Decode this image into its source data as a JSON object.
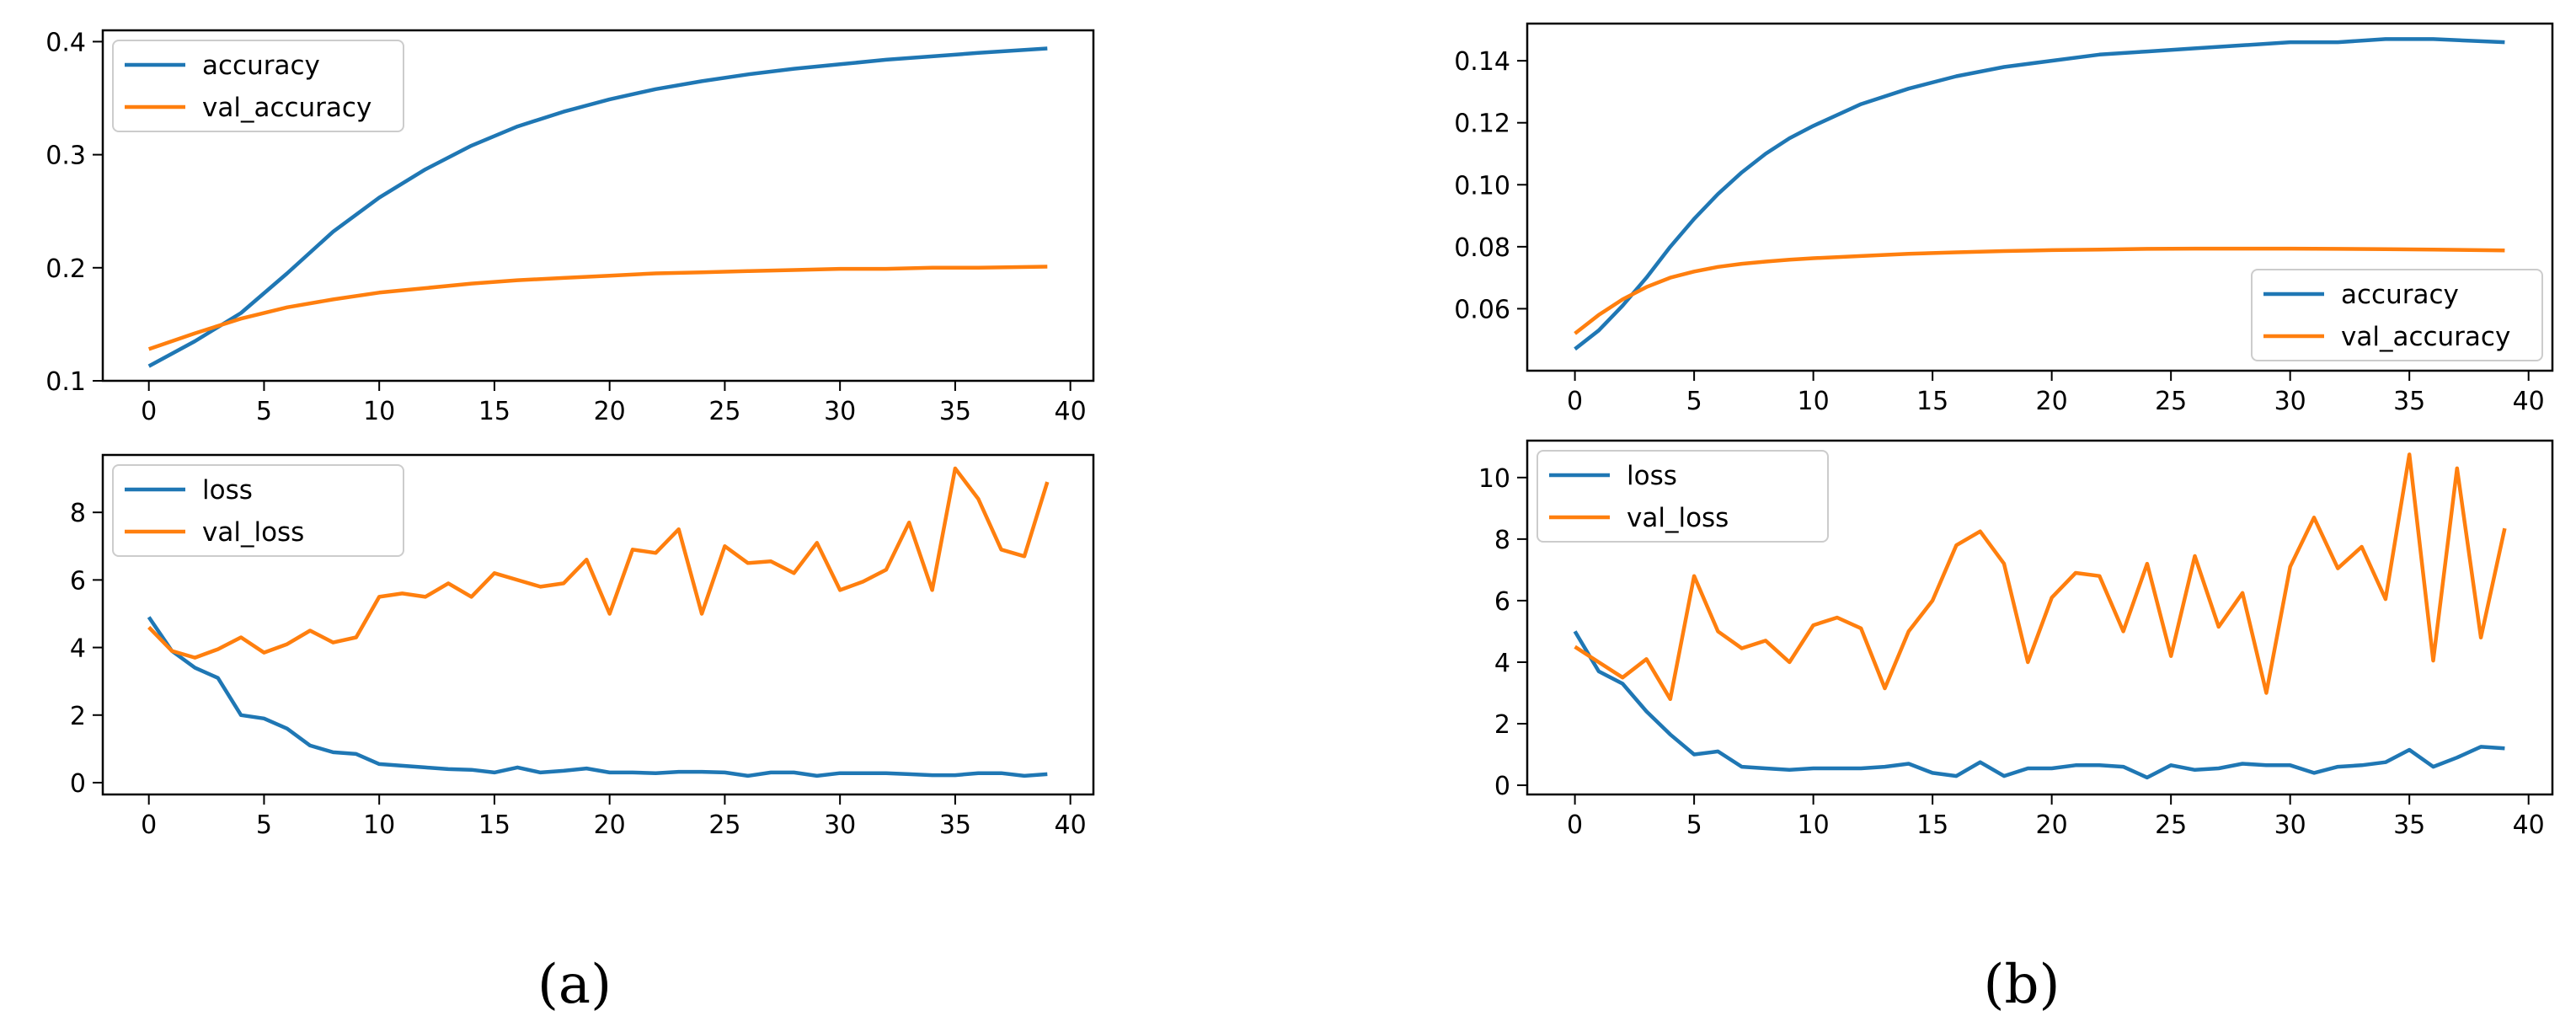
{
  "colors": {
    "blue": "#1f77b4",
    "orange": "#ff7f0e"
  },
  "captions": [
    "(a)",
    "(b)"
  ],
  "chart_data": [
    {
      "id": "a-accuracy",
      "type": "line",
      "x_ticks": [
        0,
        5,
        10,
        15,
        20,
        25,
        30,
        35,
        40
      ],
      "xlim": [
        -2,
        41
      ],
      "y_ticks": [
        0.1,
        0.2,
        0.3,
        0.4
      ],
      "y_tick_labels": [
        "0.1",
        "0.2",
        "0.3",
        "0.4"
      ],
      "ylim": [
        0.1,
        0.41
      ],
      "legend": "top-left",
      "series": [
        {
          "name": "accuracy",
          "color": "#1f77b4",
          "x": [
            0,
            2,
            4,
            6,
            8,
            10,
            12,
            14,
            16,
            18,
            20,
            22,
            24,
            26,
            28,
            30,
            32,
            34,
            36,
            39
          ],
          "values": [
            0.113,
            0.135,
            0.16,
            0.195,
            0.232,
            0.262,
            0.287,
            0.308,
            0.325,
            0.338,
            0.349,
            0.358,
            0.365,
            0.371,
            0.376,
            0.38,
            0.384,
            0.387,
            0.39,
            0.394
          ]
        },
        {
          "name": "val_accuracy",
          "color": "#ff7f0e",
          "x": [
            0,
            2,
            4,
            6,
            8,
            10,
            12,
            14,
            16,
            18,
            20,
            22,
            24,
            26,
            28,
            30,
            32,
            34,
            36,
            39
          ],
          "values": [
            0.128,
            0.142,
            0.155,
            0.165,
            0.172,
            0.178,
            0.182,
            0.186,
            0.189,
            0.191,
            0.193,
            0.195,
            0.196,
            0.197,
            0.198,
            0.199,
            0.199,
            0.2,
            0.2,
            0.201
          ]
        }
      ]
    },
    {
      "id": "a-loss",
      "type": "line",
      "x_ticks": [
        0,
        5,
        10,
        15,
        20,
        25,
        30,
        35,
        40
      ],
      "xlim": [
        -2,
        41
      ],
      "y_ticks": [
        0,
        2,
        4,
        6,
        8
      ],
      "y_tick_labels": [
        "0",
        "2",
        "4",
        "6",
        "8"
      ],
      "ylim": [
        -0.35,
        9.7
      ],
      "legend": "top-left",
      "series": [
        {
          "name": "loss",
          "color": "#1f77b4",
          "x": [
            0,
            1,
            2,
            3,
            4,
            5,
            6,
            7,
            8,
            9,
            10,
            11,
            12,
            13,
            14,
            15,
            16,
            17,
            18,
            19,
            20,
            21,
            22,
            23,
            24,
            25,
            26,
            27,
            28,
            29,
            30,
            31,
            32,
            33,
            34,
            35,
            36,
            37,
            38,
            39
          ],
          "values": [
            4.9,
            3.9,
            3.4,
            3.1,
            2.0,
            1.9,
            1.6,
            1.1,
            0.9,
            0.85,
            0.55,
            0.5,
            0.45,
            0.4,
            0.38,
            0.3,
            0.45,
            0.3,
            0.35,
            0.42,
            0.3,
            0.3,
            0.28,
            0.32,
            0.32,
            0.3,
            0.2,
            0.3,
            0.3,
            0.2,
            0.28,
            0.28,
            0.28,
            0.25,
            0.22,
            0.22,
            0.28,
            0.28,
            0.2,
            0.25
          ]
        },
        {
          "name": "val_loss",
          "color": "#ff7f0e",
          "x": [
            0,
            1,
            2,
            3,
            4,
            5,
            6,
            7,
            8,
            9,
            10,
            11,
            12,
            13,
            14,
            15,
            16,
            17,
            18,
            19,
            20,
            21,
            22,
            23,
            24,
            25,
            26,
            27,
            28,
            29,
            30,
            31,
            32,
            33,
            34,
            35,
            36,
            37,
            38,
            39
          ],
          "values": [
            4.6,
            3.9,
            3.7,
            3.95,
            4.3,
            3.85,
            4.1,
            4.5,
            4.15,
            4.3,
            5.5,
            5.6,
            5.5,
            5.9,
            5.5,
            6.2,
            6.0,
            5.8,
            5.9,
            6.6,
            5.0,
            6.9,
            6.8,
            7.5,
            5.0,
            7.0,
            6.5,
            6.55,
            6.2,
            7.1,
            5.7,
            5.95,
            6.3,
            7.7,
            5.7,
            9.3,
            8.4,
            6.9,
            6.7,
            8.9
          ]
        }
      ]
    },
    {
      "id": "b-accuracy",
      "type": "line",
      "x_ticks": [
        0,
        5,
        10,
        15,
        20,
        25,
        30,
        35,
        40
      ],
      "xlim": [
        -2,
        41
      ],
      "y_ticks": [
        0.06,
        0.08,
        0.1,
        0.12,
        0.14
      ],
      "y_tick_labels": [
        "0.06",
        "0.08",
        "0.10",
        "0.12",
        "0.14"
      ],
      "ylim": [
        0.04,
        0.152
      ],
      "legend": "lower-right",
      "series": [
        {
          "name": "accuracy",
          "color": "#1f77b4",
          "x": [
            0,
            1,
            2,
            3,
            4,
            5,
            6,
            7,
            8,
            9,
            10,
            12,
            14,
            16,
            18,
            20,
            22,
            24,
            26,
            28,
            30,
            32,
            34,
            36,
            39
          ],
          "values": [
            0.047,
            0.053,
            0.061,
            0.07,
            0.08,
            0.089,
            0.097,
            0.104,
            0.11,
            0.115,
            0.119,
            0.126,
            0.131,
            0.135,
            0.138,
            0.14,
            0.142,
            0.143,
            0.144,
            0.145,
            0.146,
            0.146,
            0.147,
            0.147,
            0.146
          ]
        },
        {
          "name": "val_accuracy",
          "color": "#ff7f0e",
          "x": [
            0,
            1,
            2,
            3,
            4,
            5,
            6,
            7,
            8,
            9,
            10,
            12,
            14,
            16,
            18,
            20,
            22,
            24,
            26,
            28,
            30,
            32,
            34,
            36,
            39
          ],
          "values": [
            0.052,
            0.058,
            0.063,
            0.067,
            0.07,
            0.072,
            0.0735,
            0.0745,
            0.0752,
            0.0758,
            0.0763,
            0.077,
            0.0777,
            0.0782,
            0.0786,
            0.0789,
            0.0791,
            0.0793,
            0.0794,
            0.0794,
            0.0794,
            0.0793,
            0.0792,
            0.0791,
            0.0788
          ]
        }
      ]
    },
    {
      "id": "b-loss",
      "type": "line",
      "x_ticks": [
        0,
        5,
        10,
        15,
        20,
        25,
        30,
        35,
        40
      ],
      "xlim": [
        -2,
        41
      ],
      "y_ticks": [
        0,
        2,
        4,
        6,
        8,
        10
      ],
      "y_tick_labels": [
        "0",
        "2",
        "4",
        "6",
        "8",
        "10"
      ],
      "ylim": [
        -0.3,
        11.2
      ],
      "legend": "top-left",
      "series": [
        {
          "name": "loss",
          "color": "#1f77b4",
          "x": [
            0,
            1,
            2,
            3,
            4,
            5,
            6,
            7,
            8,
            9,
            10,
            11,
            12,
            13,
            14,
            15,
            16,
            17,
            18,
            19,
            20,
            21,
            22,
            23,
            24,
            25,
            26,
            27,
            28,
            29,
            30,
            31,
            32,
            33,
            34,
            35,
            36,
            37,
            38,
            39
          ],
          "values": [
            5.0,
            3.7,
            3.3,
            2.4,
            1.65,
            1.0,
            1.1,
            0.6,
            0.55,
            0.5,
            0.55,
            0.55,
            0.55,
            0.6,
            0.7,
            0.4,
            0.3,
            0.75,
            0.3,
            0.55,
            0.55,
            0.65,
            0.65,
            0.6,
            0.25,
            0.65,
            0.5,
            0.55,
            0.7,
            0.65,
            0.65,
            0.4,
            0.6,
            0.65,
            0.75,
            1.15,
            0.6,
            0.9,
            1.25,
            1.2
          ]
        },
        {
          "name": "val_loss",
          "color": "#ff7f0e",
          "x": [
            0,
            1,
            2,
            3,
            4,
            5,
            6,
            7,
            8,
            9,
            10,
            11,
            12,
            13,
            14,
            15,
            16,
            17,
            18,
            19,
            20,
            21,
            22,
            23,
            24,
            25,
            26,
            27,
            28,
            29,
            30,
            31,
            32,
            33,
            34,
            35,
            36,
            37,
            38,
            39
          ],
          "values": [
            4.5,
            4.0,
            3.5,
            4.1,
            2.8,
            6.8,
            5.0,
            4.45,
            4.7,
            4.0,
            5.2,
            5.45,
            5.1,
            3.15,
            5.0,
            6.0,
            7.8,
            8.25,
            7.2,
            4.0,
            6.1,
            6.9,
            6.8,
            5.0,
            7.2,
            4.2,
            7.45,
            5.15,
            6.25,
            3.0,
            7.1,
            8.7,
            7.05,
            7.75,
            6.05,
            10.75,
            4.05,
            10.3,
            4.8,
            8.35
          ]
        }
      ]
    }
  ]
}
